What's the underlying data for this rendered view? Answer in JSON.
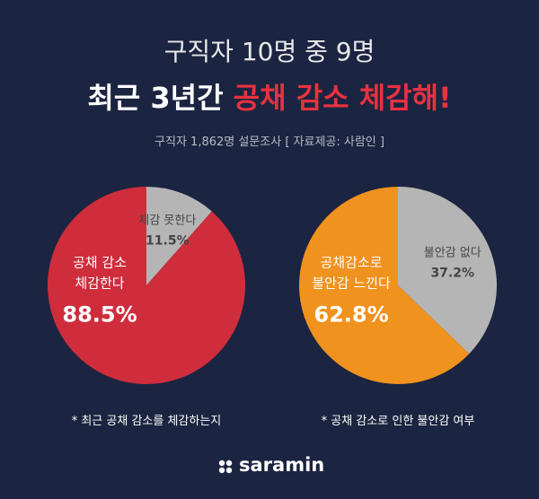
{
  "title_line1": "구직자 10명 중 9명",
  "title_line2_white": "최근 3년간",
  "title_line2_red": "공채 감소 체감해!",
  "subtitle": "구직자 1,862명 설문조사 [ 자료제공: 사람인 ]",
  "brand": "saramin",
  "chart_data": [
    {
      "type": "pie",
      "categories": [
        "체감 못한다",
        "공채 감소\n체감한다"
      ],
      "values": [
        11.5,
        88.5
      ],
      "value_labels": [
        "11.5%",
        "88.5%"
      ],
      "colors": [
        "#b5b5b5",
        "#cf2d3c"
      ],
      "note": "* 최근 공채 감소를 체감하는지"
    },
    {
      "type": "pie",
      "categories": [
        "불안감 없다",
        "공채감소로\n불안감 느낀다"
      ],
      "values": [
        37.2,
        62.8
      ],
      "value_labels": [
        "37.2%",
        "62.8%"
      ],
      "colors": [
        "#b5b5b5",
        "#f0921e"
      ],
      "note": "* 공채 감소로 인한 불안감 여부"
    }
  ]
}
